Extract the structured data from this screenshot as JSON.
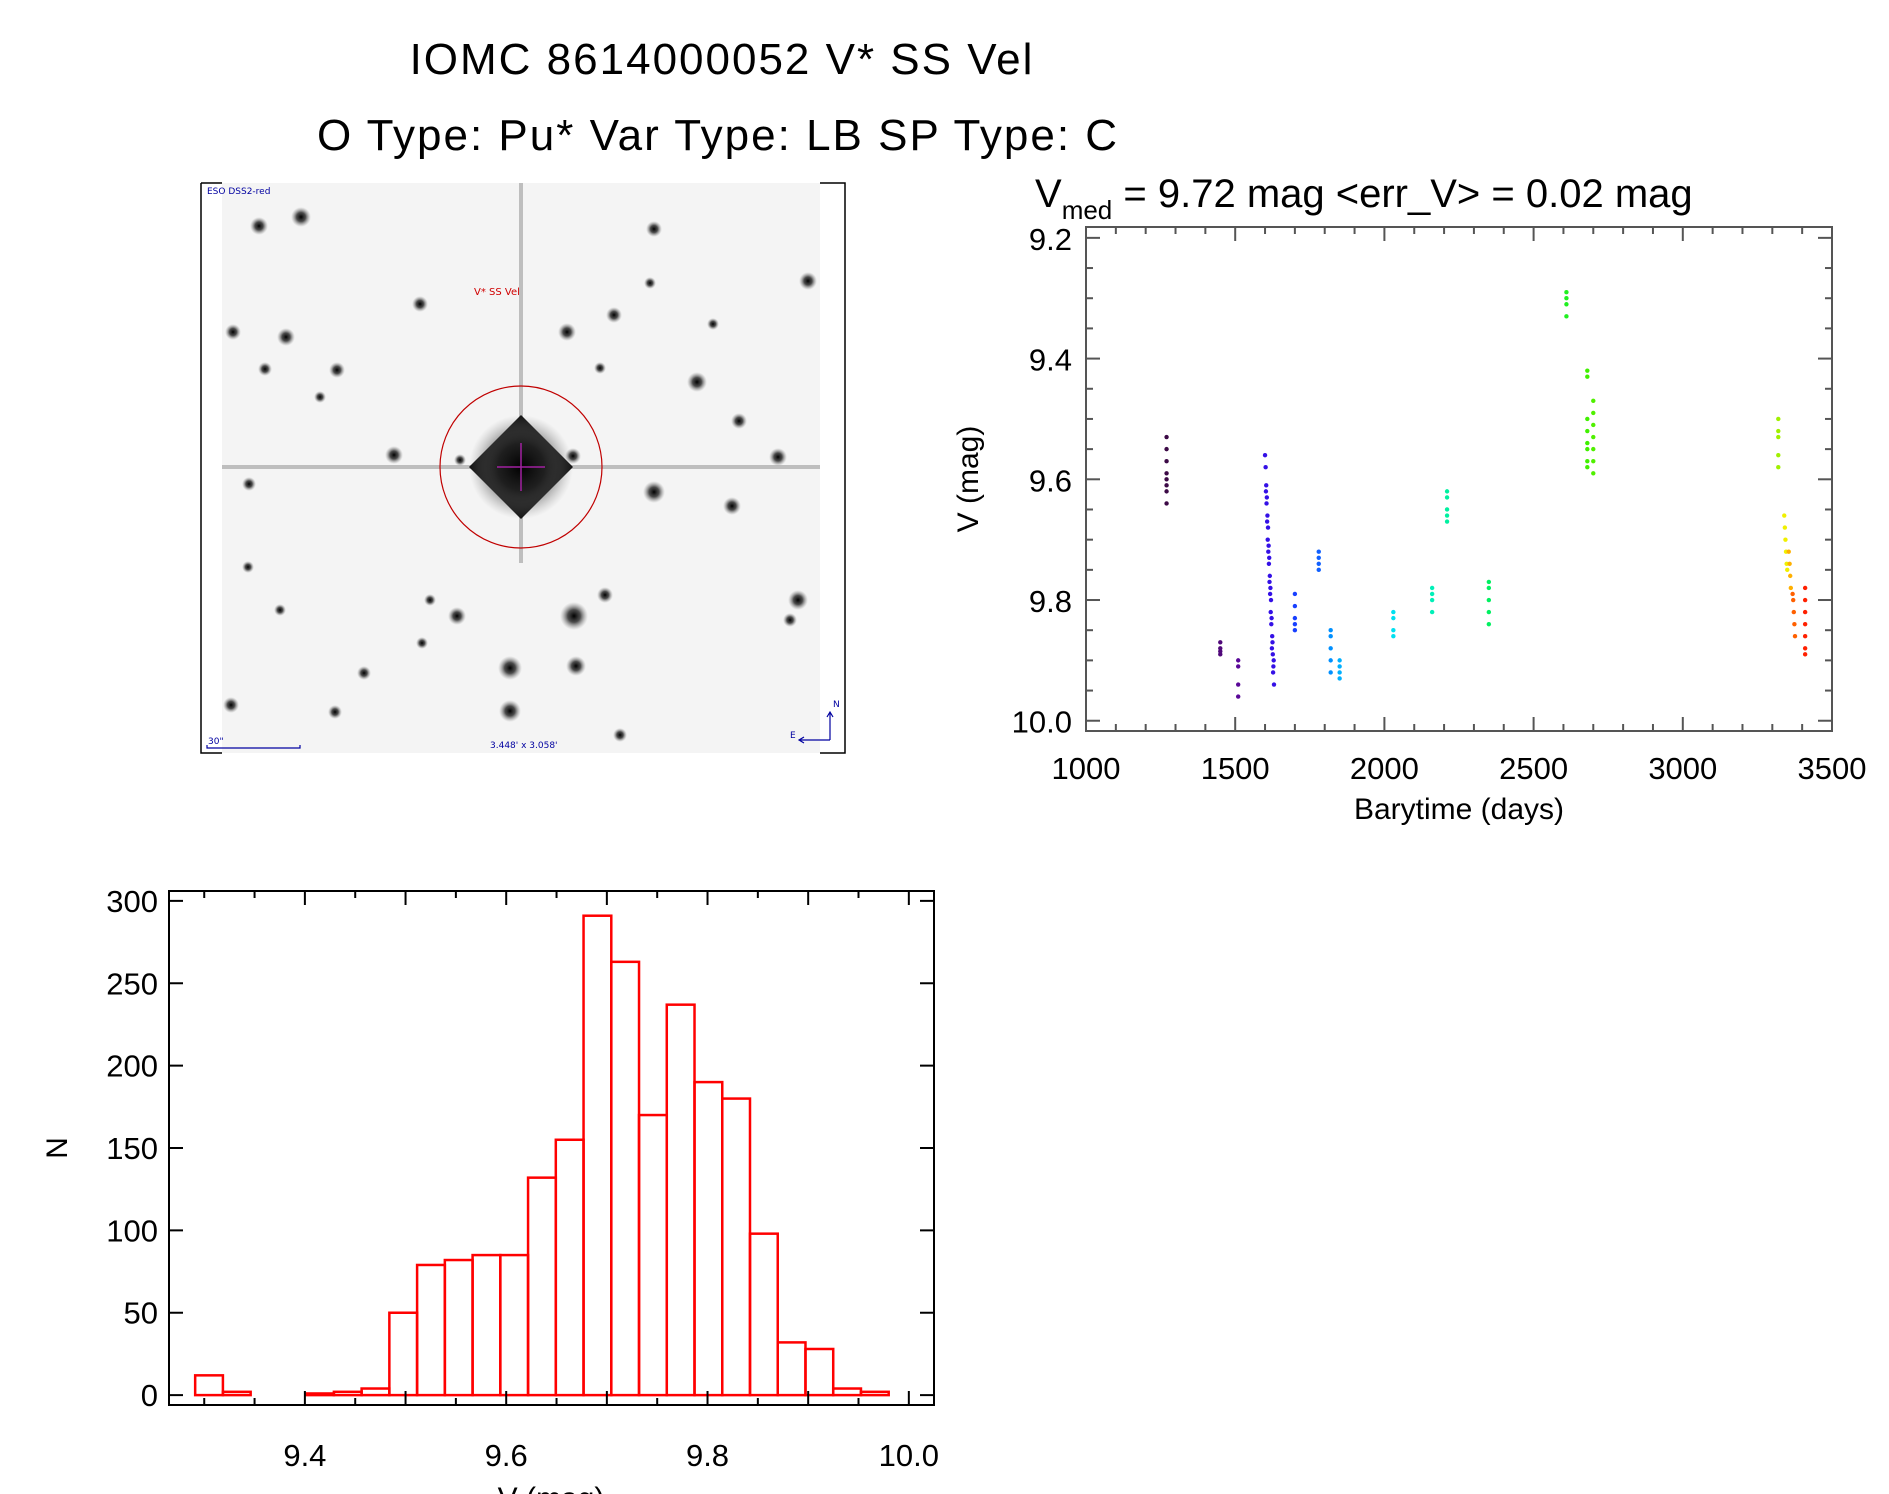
{
  "header": {
    "title_line1": "IOMC 8614000052    V* SS Vel",
    "title_line2": "O Type: Pu*   Var Type: LB   SP Type: C"
  },
  "finder": {
    "survey_label": "ESO DSS2-red",
    "target_label": "V* SS Vel",
    "scale_label": "30\"",
    "fov_label": "3.448' x 3.058'",
    "north_label": "N",
    "east_label": "E"
  },
  "chart_data": [
    {
      "type": "scatter",
      "title_parts": {
        "v": "V",
        "sub": "med",
        "rest": " = 9.72 mag <err_V> = 0.02 mag"
      },
      "xlabel": "Barytime (days)",
      "ylabel": "V (mag)",
      "xlim": [
        1000,
        3500
      ],
      "ylim": [
        10.017,
        9.182
      ],
      "y_inverted": true,
      "xticks": [
        "1000",
        "1500",
        "2000",
        "2500",
        "3000",
        "3500"
      ],
      "yticks": [
        "9.2",
        "9.4",
        "9.6",
        "9.8",
        "10.0"
      ],
      "clusters": [
        {
          "x": [
            1270,
            1270,
            1270,
            1270,
            1270,
            1270,
            1270,
            1270
          ],
          "y": [
            9.53,
            9.55,
            9.57,
            9.59,
            9.6,
            9.61,
            9.62,
            9.64
          ],
          "color": "#3c0a46"
        },
        {
          "x": [
            1450,
            1450,
            1450,
            1450
          ],
          "y": [
            9.87,
            9.88,
            9.885,
            9.89
          ],
          "color": "#50087a"
        },
        {
          "x": [
            1510,
            1510,
            1510,
            1510
          ],
          "y": [
            9.9,
            9.91,
            9.94,
            9.96
          ],
          "color": "#5a0898"
        },
        {
          "x": [
            1600,
            1602,
            1604,
            1606,
            1608,
            1610,
            1612,
            1614,
            1616,
            1618,
            1620,
            1622,
            1624,
            1626,
            1628,
            1630,
            1603,
            1607,
            1611,
            1615,
            1619,
            1623,
            1627,
            1605,
            1609,
            1613,
            1617,
            1621,
            1625,
            1629
          ],
          "y": [
            9.56,
            9.58,
            9.61,
            9.63,
            9.66,
            9.68,
            9.71,
            9.73,
            9.76,
            9.78,
            9.8,
            9.83,
            9.86,
            9.89,
            9.91,
            9.94,
            9.62,
            9.67,
            9.72,
            9.77,
            9.82,
            9.88,
            9.92,
            9.64,
            9.7,
            9.74,
            9.79,
            9.84,
            9.87,
            9.9
          ],
          "color": "#3410e6"
        },
        {
          "x": [
            1700,
            1700,
            1700,
            1700,
            1700
          ],
          "y": [
            9.79,
            9.81,
            9.83,
            9.84,
            9.85
          ],
          "color": "#1840ff"
        },
        {
          "x": [
            1780,
            1780,
            1780,
            1780
          ],
          "y": [
            9.72,
            9.73,
            9.74,
            9.75
          ],
          "color": "#1060ff"
        },
        {
          "x": [
            1820,
            1820,
            1820,
            1820,
            1820
          ],
          "y": [
            9.85,
            9.86,
            9.88,
            9.9,
            9.92
          ],
          "color": "#0090ff"
        },
        {
          "x": [
            1850,
            1850,
            1850,
            1850
          ],
          "y": [
            9.9,
            9.91,
            9.92,
            9.93
          ],
          "color": "#00b0ff"
        },
        {
          "x": [
            2030,
            2030,
            2030,
            2030
          ],
          "y": [
            9.82,
            9.83,
            9.85,
            9.86
          ],
          "color": "#00e0f0"
        },
        {
          "x": [
            2160,
            2160,
            2160,
            2160
          ],
          "y": [
            9.78,
            9.79,
            9.8,
            9.82
          ],
          "color": "#00f0b8"
        },
        {
          "x": [
            2210,
            2210,
            2210,
            2210,
            2210
          ],
          "y": [
            9.62,
            9.63,
            9.65,
            9.66,
            9.67
          ],
          "color": "#00f0a0"
        },
        {
          "x": [
            2350,
            2350,
            2350,
            2350,
            2350
          ],
          "y": [
            9.77,
            9.78,
            9.8,
            9.82,
            9.84
          ],
          "color": "#00f060"
        },
        {
          "x": [
            2610,
            2610,
            2610,
            2610
          ],
          "y": [
            9.29,
            9.3,
            9.31,
            9.33
          ],
          "color": "#20f020"
        },
        {
          "x": [
            2680,
            2680,
            2680,
            2680,
            2680,
            2680,
            2680,
            2680
          ],
          "y": [
            9.42,
            9.43,
            9.5,
            9.52,
            9.54,
            9.55,
            9.57,
            9.58
          ],
          "color": "#40f000"
        },
        {
          "x": [
            2700,
            2700,
            2700,
            2700,
            2700,
            2700,
            2700
          ],
          "y": [
            9.47,
            9.49,
            9.51,
            9.53,
            9.55,
            9.57,
            9.59
          ],
          "color": "#50f000"
        },
        {
          "x": [
            3320,
            3320,
            3320,
            3320,
            3320
          ],
          "y": [
            9.5,
            9.52,
            9.53,
            9.56,
            9.58
          ],
          "color": "#a0f000"
        },
        {
          "x": [
            3340,
            3342,
            3344,
            3346,
            3348,
            3350
          ],
          "y": [
            9.66,
            9.68,
            9.7,
            9.72,
            9.74,
            9.75
          ],
          "color": "#f0f000"
        },
        {
          "x": [
            3355,
            3358,
            3360,
            3362
          ],
          "y": [
            9.72,
            9.74,
            9.76,
            9.78
          ],
          "color": "#ffb000"
        },
        {
          "x": [
            3368,
            3370,
            3372,
            3374,
            3376
          ],
          "y": [
            9.79,
            9.8,
            9.82,
            9.84,
            9.86
          ],
          "color": "#ff6000"
        },
        {
          "x": [
            3410,
            3410,
            3410,
            3410,
            3410,
            3410,
            3410
          ],
          "y": [
            9.78,
            9.8,
            9.82,
            9.84,
            9.86,
            9.88,
            9.89
          ],
          "color": "#ff2000"
        }
      ]
    },
    {
      "type": "bar",
      "subtype": "histogram",
      "xlabel": "V (mag)",
      "ylabel": "N",
      "xlim": [
        9.265,
        10.025
      ],
      "ylim": [
        -6,
        306
      ],
      "xticks": [
        "9.4",
        "9.6",
        "9.8",
        "10.0"
      ],
      "yticks": [
        "0",
        "50",
        "100",
        "150",
        "200",
        "250",
        "300"
      ],
      "bin_start": 9.291,
      "bin_width": 0.02756,
      "values": [
        12,
        2,
        0,
        0,
        1,
        2,
        4,
        50,
        79,
        82,
        85,
        85,
        132,
        155,
        291,
        263,
        170,
        237,
        190,
        180,
        98,
        32,
        28,
        4,
        2
      ],
      "color": "#ff0000"
    }
  ]
}
